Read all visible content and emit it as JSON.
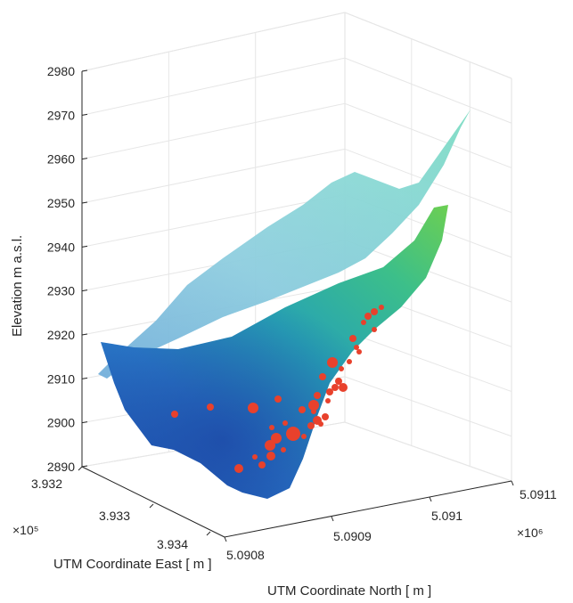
{
  "chart_data": {
    "type": "surface3d",
    "title": "",
    "zlabel": "Elevation m a.s.l.",
    "xlabel": "UTM Coordinate East [ m ]",
    "ylabel": "UTM Coordinate North [ m ]",
    "zlim": [
      2890,
      2980
    ],
    "z_ticks": [
      "2890",
      "2900",
      "2910",
      "2920",
      "2930",
      "2940",
      "2950",
      "2960",
      "2970",
      "2980"
    ],
    "x_ticks": [
      "3.932",
      "3.933",
      "3.934"
    ],
    "x_multiplier": "×10⁵",
    "y_ticks": [
      "5.0908",
      "5.0909",
      "5.091",
      "5.0911"
    ],
    "y_multiplier": "×10⁶",
    "grid": true,
    "surfaces": [
      {
        "colormap": "cyan-blue",
        "description_range": [
          2905,
          2975
        ]
      },
      {
        "colormap": "blue-green-yellow",
        "description_range": [
          2890,
          2950
        ]
      }
    ],
    "points": {
      "color": "#e8412c",
      "count": 40
    }
  }
}
